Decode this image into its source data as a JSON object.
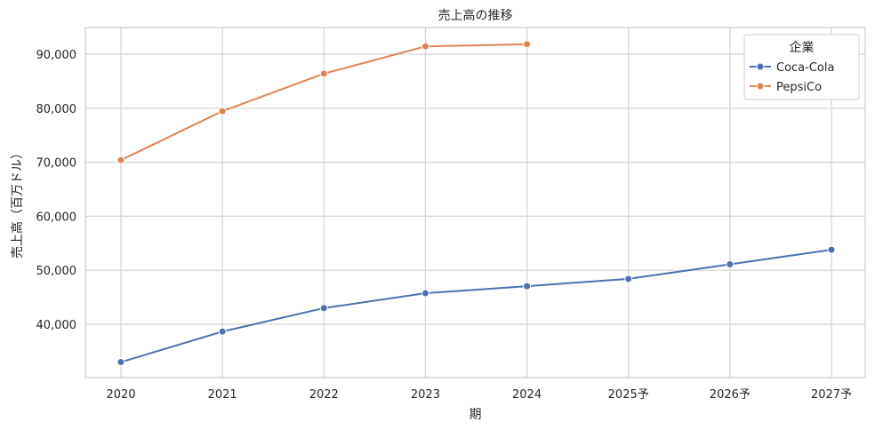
{
  "chart_data": {
    "type": "line",
    "title": "売上高の推移",
    "xlabel": "期",
    "ylabel": "売上高（百万ドル）",
    "categories": [
      "2020",
      "2021",
      "2022",
      "2023",
      "2024",
      "2025予",
      "2026予",
      "2027予"
    ],
    "y_ticks": [
      "40,000",
      "50,000",
      "60,000",
      "70,000",
      "80,000",
      "90,000"
    ],
    "y_tick_values": [
      40000,
      50000,
      60000,
      70000,
      80000,
      90000
    ],
    "ylim": [
      30000,
      95000
    ],
    "grid": true,
    "legend": {
      "title": "企業",
      "placement": "top-right"
    },
    "series": [
      {
        "name": "Coca-Cola",
        "color": "#4c72b0",
        "values": [
          33000,
          38650,
          43000,
          45750,
          47050,
          48400,
          51100,
          53800
        ]
      },
      {
        "name": "PepsiCo",
        "color": "#dd8452",
        "values": [
          70400,
          79450,
          86400,
          91450,
          91850,
          null,
          null,
          null
        ]
      }
    ]
  }
}
